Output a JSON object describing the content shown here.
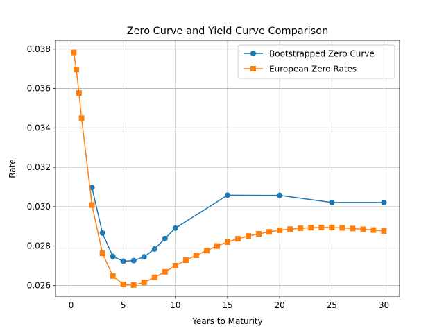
{
  "chart_data": {
    "type": "line",
    "title": "Zero Curve and Yield Curve Comparison",
    "xlabel": "Years to Maturity",
    "ylabel": "Rate",
    "xlim": [
      -1.5,
      31.5
    ],
    "ylim": [
      0.02545,
      0.03845
    ],
    "xticks": [
      0,
      5,
      10,
      15,
      20,
      25,
      30
    ],
    "yticks": [
      0.026,
      0.028,
      0.03,
      0.032,
      0.034,
      0.036,
      0.038
    ],
    "ytick_labels": [
      "0.026",
      "0.028",
      "0.030",
      "0.032",
      "0.034",
      "0.036",
      "0.038"
    ],
    "grid": true,
    "legend_position": "top-right",
    "series": [
      {
        "name": "Bootstrapped Zero Curve",
        "color": "#1f77b4",
        "marker": "circle",
        "x": [
          2,
          3,
          4,
          5,
          6,
          7,
          8,
          9,
          10,
          15,
          20,
          25,
          30
        ],
        "y": [
          0.03097,
          0.02866,
          0.02747,
          0.02723,
          0.02726,
          0.02745,
          0.02785,
          0.02838,
          0.02891,
          0.03058,
          0.03057,
          0.03021,
          0.03021
        ]
      },
      {
        "name": "European Zero Rates",
        "color": "#ff7f0e",
        "marker": "square",
        "x": [
          0.25,
          0.5,
          0.75,
          1,
          2,
          3,
          4,
          5,
          6,
          7,
          8,
          9,
          10,
          11,
          12,
          13,
          14,
          15,
          16,
          17,
          18,
          19,
          20,
          21,
          22,
          23,
          24,
          25,
          26,
          27,
          28,
          29,
          30
        ],
        "y": [
          0.03783,
          0.03696,
          0.03577,
          0.03449,
          0.03008,
          0.02763,
          0.02648,
          0.02605,
          0.02602,
          0.02615,
          0.02641,
          0.02669,
          0.027,
          0.02728,
          0.02753,
          0.02777,
          0.028,
          0.0282,
          0.02837,
          0.02851,
          0.02862,
          0.02872,
          0.0288,
          0.02886,
          0.0289,
          0.02893,
          0.02894,
          0.02894,
          0.02892,
          0.02889,
          0.02885,
          0.02881,
          0.02876
        ]
      }
    ]
  }
}
